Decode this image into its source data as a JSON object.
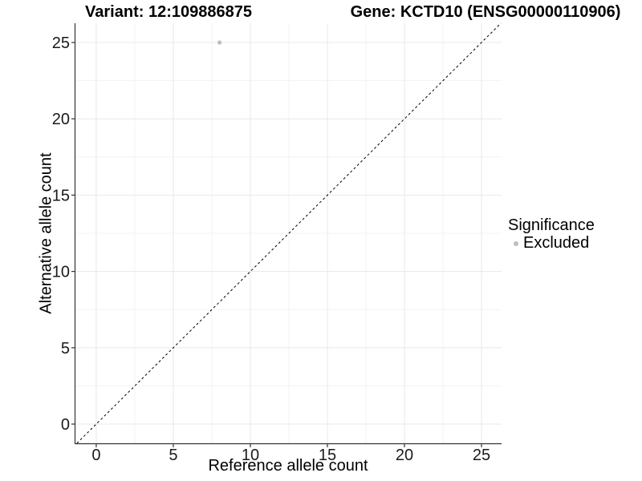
{
  "chart_data": {
    "type": "scatter",
    "title_left": "Variant: 12:109886875",
    "title_right": "Gene: KCTD10 (ENSG00000110906)",
    "xlabel": "Reference allele count",
    "ylabel": "Alternative allele count",
    "xlim": [
      -1.35,
      26.3
    ],
    "ylim": [
      -1.26,
      26.26
    ],
    "x_ticks": [
      0,
      5,
      10,
      15,
      20,
      25
    ],
    "y_ticks": [
      0,
      5,
      10,
      15,
      20,
      25
    ],
    "x_minor_ticks": [
      2.5,
      7.5,
      12.5,
      17.5,
      22.5
    ],
    "y_minor_ticks": [
      2.5,
      7.5,
      12.5,
      17.5,
      22.5
    ],
    "grid": "major+minor",
    "series": [
      {
        "name": "Excluded",
        "color": "#bebebe",
        "points": [
          {
            "x": 8,
            "y": 25
          }
        ]
      }
    ],
    "reference_line": {
      "kind": "identity",
      "equation": "y = x",
      "style": "dashed",
      "color": "#000000"
    },
    "legend": {
      "title": "Significance",
      "position": "right",
      "items": [
        {
          "label": "Excluded",
          "color": "#bebebe",
          "marker": "circle"
        }
      ]
    },
    "style": {
      "background": "#ffffff",
      "grid_major_color": "#e8e8e8",
      "grid_minor_color": "#f3f3f3",
      "axis_color": "#333333",
      "tick_label_color": "#1a1a1a",
      "point_radius": 2.6
    }
  }
}
